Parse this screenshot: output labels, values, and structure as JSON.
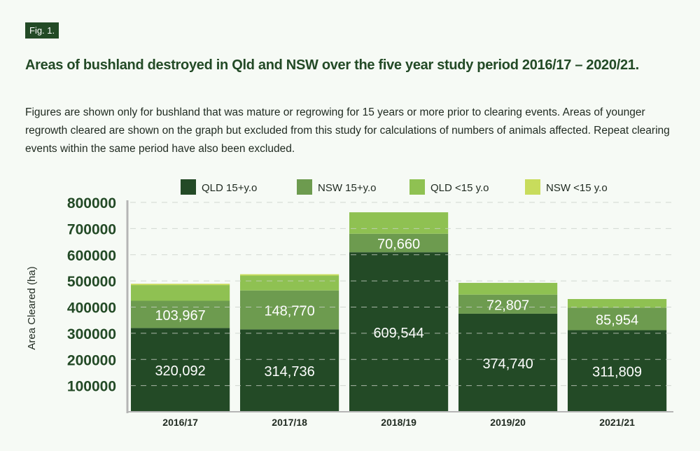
{
  "fig_label": "Fig. 1.",
  "title": "Areas of bushland destroyed in Qld and NSW over the five year study period 2016/17 – 2020/21.",
  "subtitle": "Figures are shown only for bushland that was mature or regrowing for 15 years or more prior to clearing events. Areas of younger regrowth cleared are shown on the graph but excluded from this study for calculations of numbers of animals affected. Repeat clearing events within the same period have also been excluded.",
  "chart_data": {
    "type": "bar",
    "stacked": true,
    "ylabel": "Area Cleared (ha)",
    "xlabel": "",
    "ylim": [
      0,
      800000
    ],
    "yticks": [
      "100000",
      "200000",
      "300000",
      "400000",
      "500000",
      "600000",
      "700000",
      "800000"
    ],
    "grid": true,
    "legend_position": "top",
    "categories": [
      "2016/17",
      "2017/18",
      "2018/19",
      "2019/20",
      "2021/21"
    ],
    "series": [
      {
        "name": "QLD 15+y.o",
        "color": "#234a26",
        "values": [
          320092,
          314736,
          609544,
          374740,
          311809
        ],
        "labels": [
          "320,092",
          "314,736",
          "609,544",
          "374,740",
          "311,809"
        ]
      },
      {
        "name": "NSW 15+y.o",
        "color": "#6d9b4f",
        "values": [
          103967,
          148770,
          70660,
          72807,
          85954
        ],
        "labels": [
          "103,967",
          "148,770",
          "70,660",
          "72,807",
          "85,954"
        ]
      },
      {
        "name": "QLD <15 y.o",
        "color": "#8fc152",
        "values": [
          60000,
          57000,
          82000,
          45000,
          33000
        ],
        "labels": [
          "",
          "",
          "",
          "",
          ""
        ]
      },
      {
        "name": "NSW <15 y.o",
        "color": "#c8dc5c",
        "values": [
          5000,
          5000,
          0,
          0,
          0
        ],
        "labels": [
          "",
          "",
          "",
          "",
          ""
        ]
      }
    ]
  }
}
